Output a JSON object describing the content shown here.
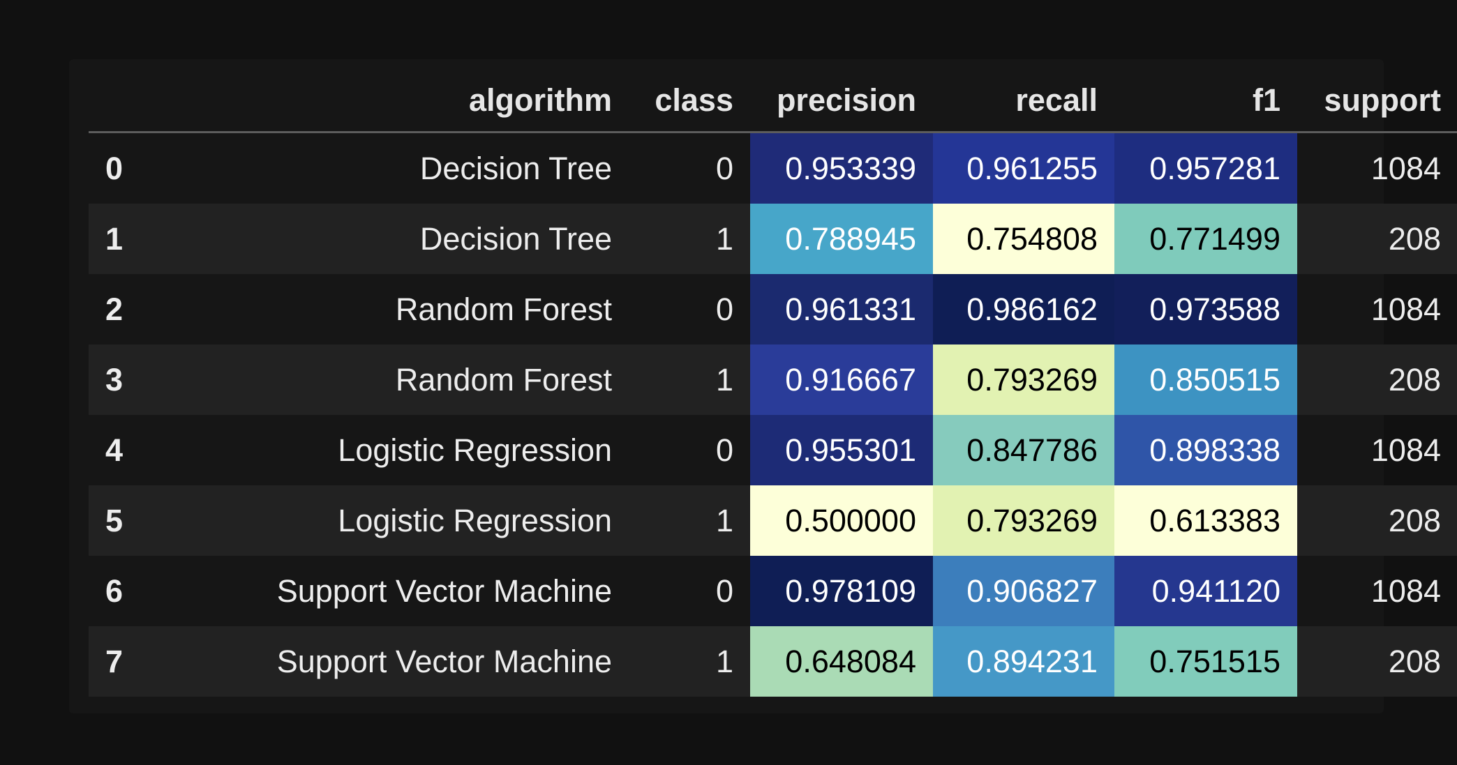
{
  "table": {
    "columns": [
      "",
      "algorithm",
      "class",
      "precision",
      "recall",
      "f1",
      "support"
    ],
    "rows": [
      {
        "index": "0",
        "algorithm": "Decision Tree",
        "class": "0",
        "precision": "0.953339",
        "recall": "0.961255",
        "f1": "0.957281",
        "support": "1084",
        "precision_bg": "#1f2b78",
        "recall_bg": "#243696",
        "f1_bg": "#1e2d80",
        "precision_fg": "#ffffff",
        "recall_fg": "#ffffff",
        "f1_fg": "#ffffff"
      },
      {
        "index": "1",
        "algorithm": "Decision Tree",
        "class": "1",
        "precision": "0.788945",
        "recall": "0.754808",
        "f1": "0.771499",
        "support": "208",
        "precision_bg": "#47a6c9",
        "recall_bg": "#fdffd9",
        "f1_bg": "#7fcbbb",
        "precision_fg": "#ffffff",
        "recall_fg": "#000000",
        "f1_fg": "#000000"
      },
      {
        "index": "2",
        "algorithm": "Random Forest",
        "class": "0",
        "precision": "0.961331",
        "recall": "0.986162",
        "f1": "0.973588",
        "support": "1084",
        "precision_bg": "#1b2a6f",
        "recall_bg": "#0f1e55",
        "f1_bg": "#121f5a",
        "precision_fg": "#ffffff",
        "recall_fg": "#ffffff",
        "f1_fg": "#ffffff"
      },
      {
        "index": "3",
        "algorithm": "Random Forest",
        "class": "1",
        "precision": "0.916667",
        "recall": "0.793269",
        "f1": "0.850515",
        "support": "208",
        "precision_bg": "#2a3c99",
        "recall_bg": "#e2f2b2",
        "f1_bg": "#3d93c2",
        "precision_fg": "#ffffff",
        "recall_fg": "#000000",
        "f1_fg": "#ffffff"
      },
      {
        "index": "4",
        "algorithm": "Logistic Regression",
        "class": "0",
        "precision": "0.955301",
        "recall": "0.847786",
        "f1": "0.898338",
        "support": "1084",
        "precision_bg": "#1d2b76",
        "recall_bg": "#86cbbd",
        "f1_bg": "#2f55a8",
        "precision_fg": "#ffffff",
        "recall_fg": "#000000",
        "f1_fg": "#ffffff"
      },
      {
        "index": "5",
        "algorithm": "Logistic Regression",
        "class": "1",
        "precision": "0.500000",
        "recall": "0.793269",
        "f1": "0.613383",
        "support": "208",
        "precision_bg": "#fdffd9",
        "recall_bg": "#e2f2b2",
        "f1_bg": "#fdffd9",
        "precision_fg": "#000000",
        "recall_fg": "#000000",
        "f1_fg": "#000000"
      },
      {
        "index": "6",
        "algorithm": "Support Vector Machine",
        "class": "0",
        "precision": "0.978109",
        "recall": "0.906827",
        "f1": "0.941120",
        "support": "1084",
        "precision_bg": "#0f1e55",
        "recall_bg": "#3c7ebc",
        "f1_bg": "#25378f",
        "precision_fg": "#ffffff",
        "recall_fg": "#ffffff",
        "f1_fg": "#ffffff"
      },
      {
        "index": "7",
        "algorithm": "Support Vector Machine",
        "class": "1",
        "precision": "0.648084",
        "recall": "0.894231",
        "f1": "0.751515",
        "support": "208",
        "precision_bg": "#aadbb5",
        "recall_bg": "#4598c7",
        "f1_bg": "#81ccbb",
        "precision_fg": "#000000",
        "recall_fg": "#ffffff",
        "f1_fg": "#000000"
      }
    ]
  }
}
